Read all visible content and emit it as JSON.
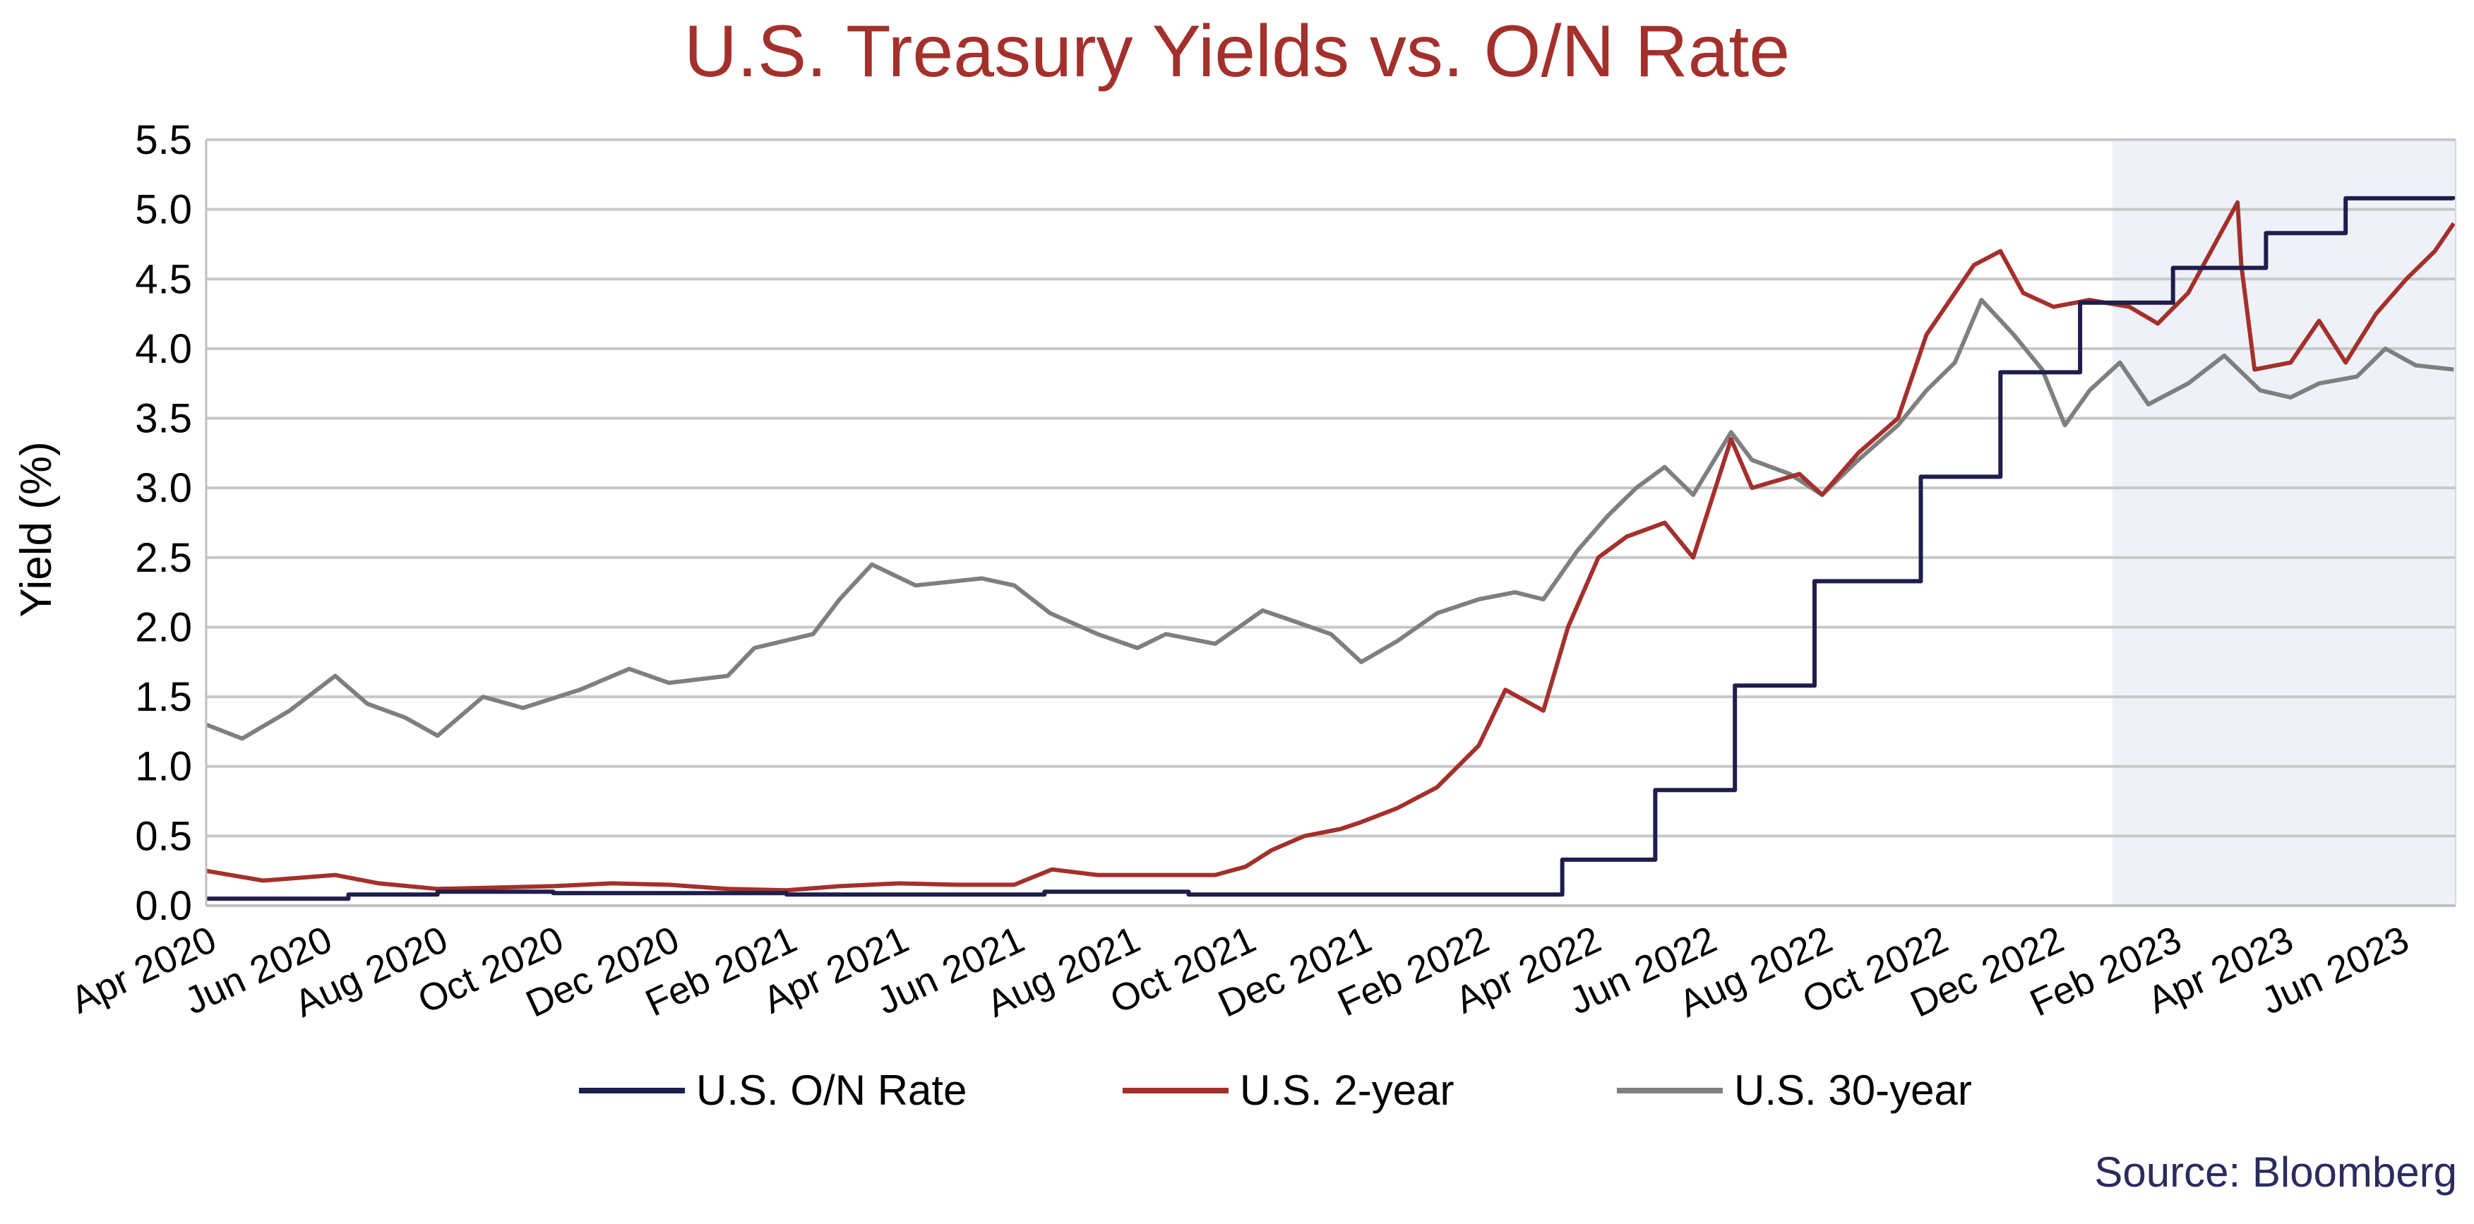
{
  "chart_data": {
    "type": "line",
    "title": "U.S. Treasury Yields vs. O/N Rate",
    "ylabel": "Yield (%)",
    "xlabel": "",
    "ylim": [
      0,
      5.5
    ],
    "yticks": [
      "0.0",
      "0.5",
      "1.0",
      "1.5",
      "2.0",
      "2.5",
      "3.0",
      "3.5",
      "4.0",
      "4.5",
      "5.0",
      "5.5"
    ],
    "xlim": [
      "2020-04-01",
      "2023-07-01"
    ],
    "xticks": [
      {
        "date": "2020-04-01",
        "label": "Apr 2020"
      },
      {
        "date": "2020-06-01",
        "label": "Jun 2020"
      },
      {
        "date": "2020-08-01",
        "label": "Aug 2020"
      },
      {
        "date": "2020-10-01",
        "label": "Oct 2020"
      },
      {
        "date": "2020-12-01",
        "label": "Dec 2020"
      },
      {
        "date": "2021-02-01",
        "label": "Feb 2021"
      },
      {
        "date": "2021-04-01",
        "label": "Apr 2021"
      },
      {
        "date": "2021-06-01",
        "label": "Jun 2021"
      },
      {
        "date": "2021-08-01",
        "label": "Aug 2021"
      },
      {
        "date": "2021-10-01",
        "label": "Oct 2021"
      },
      {
        "date": "2021-12-01",
        "label": "Dec 2021"
      },
      {
        "date": "2022-02-01",
        "label": "Feb 2022"
      },
      {
        "date": "2022-04-01",
        "label": "Apr 2022"
      },
      {
        "date": "2022-06-01",
        "label": "Jun 2022"
      },
      {
        "date": "2022-08-01",
        "label": "Aug 2022"
      },
      {
        "date": "2022-10-01",
        "label": "Oct 2022"
      },
      {
        "date": "2022-12-01",
        "label": "Dec 2022"
      },
      {
        "date": "2023-02-01",
        "label": "Feb 2023"
      },
      {
        "date": "2023-04-01",
        "label": "Apr 2023"
      },
      {
        "date": "2023-06-01",
        "label": "Jun 2023"
      }
    ],
    "grid": "horizontal",
    "legend_position": "bottom",
    "shaded_region": {
      "start": "2023-01-01",
      "end": "2023-07-01",
      "color": "#eef2f8"
    },
    "series": [
      {
        "name": "U.S. O/N Rate",
        "color": "#1f1d4d",
        "step": true,
        "points": [
          [
            "2020-04-01",
            0.05
          ],
          [
            "2020-06-15",
            0.08
          ],
          [
            "2020-08-01",
            0.1
          ],
          [
            "2020-10-01",
            0.09
          ],
          [
            "2021-02-01",
            0.08
          ],
          [
            "2021-06-17",
            0.1
          ],
          [
            "2021-09-01",
            0.08
          ],
          [
            "2022-03-17",
            0.33
          ],
          [
            "2022-05-05",
            0.83
          ],
          [
            "2022-06-16",
            1.58
          ],
          [
            "2022-07-28",
            2.33
          ],
          [
            "2022-09-22",
            3.08
          ],
          [
            "2022-11-03",
            3.83
          ],
          [
            "2022-12-15",
            4.33
          ],
          [
            "2023-02-02",
            4.58
          ],
          [
            "2023-03-23",
            4.83
          ],
          [
            "2023-05-04",
            5.08
          ],
          [
            "2023-06-30",
            5.07
          ]
        ]
      },
      {
        "name": "U.S. 2-year",
        "color": "#a4302c",
        "points": [
          [
            "2020-04-01",
            0.25
          ],
          [
            "2020-05-01",
            0.18
          ],
          [
            "2020-06-08",
            0.22
          ],
          [
            "2020-07-01",
            0.16
          ],
          [
            "2020-08-01",
            0.12
          ],
          [
            "2020-09-01",
            0.13
          ],
          [
            "2020-10-01",
            0.14
          ],
          [
            "2020-11-01",
            0.16
          ],
          [
            "2020-12-01",
            0.15
          ],
          [
            "2021-01-01",
            0.12
          ],
          [
            "2021-02-01",
            0.11
          ],
          [
            "2021-03-01",
            0.14
          ],
          [
            "2021-04-01",
            0.16
          ],
          [
            "2021-05-01",
            0.15
          ],
          [
            "2021-06-01",
            0.15
          ],
          [
            "2021-06-21",
            0.26
          ],
          [
            "2021-07-15",
            0.22
          ],
          [
            "2021-08-15",
            0.22
          ],
          [
            "2021-09-15",
            0.22
          ],
          [
            "2021-10-01",
            0.28
          ],
          [
            "2021-10-15",
            0.4
          ],
          [
            "2021-11-01",
            0.5
          ],
          [
            "2021-11-20",
            0.55
          ],
          [
            "2021-12-01",
            0.6
          ],
          [
            "2021-12-20",
            0.7
          ],
          [
            "2022-01-10",
            0.85
          ],
          [
            "2022-02-01",
            1.15
          ],
          [
            "2022-02-15",
            1.55
          ],
          [
            "2022-03-07",
            1.4
          ],
          [
            "2022-03-20",
            2.0
          ],
          [
            "2022-04-05",
            2.5
          ],
          [
            "2022-04-20",
            2.65
          ],
          [
            "2022-05-10",
            2.75
          ],
          [
            "2022-05-25",
            2.5
          ],
          [
            "2022-06-14",
            3.35
          ],
          [
            "2022-06-25",
            3.0
          ],
          [
            "2022-07-20",
            3.1
          ],
          [
            "2022-08-01",
            2.95
          ],
          [
            "2022-08-20",
            3.25
          ],
          [
            "2022-09-10",
            3.5
          ],
          [
            "2022-09-25",
            4.1
          ],
          [
            "2022-10-10",
            4.4
          ],
          [
            "2022-10-20",
            4.6
          ],
          [
            "2022-11-03",
            4.7
          ],
          [
            "2022-11-15",
            4.4
          ],
          [
            "2022-12-01",
            4.3
          ],
          [
            "2022-12-20",
            4.35
          ],
          [
            "2023-01-10",
            4.3
          ],
          [
            "2023-01-25",
            4.18
          ],
          [
            "2023-02-10",
            4.4
          ],
          [
            "2023-02-28",
            4.85
          ],
          [
            "2023-03-08",
            5.05
          ],
          [
            "2023-03-10",
            4.6
          ],
          [
            "2023-03-17",
            3.85
          ],
          [
            "2023-04-05",
            3.9
          ],
          [
            "2023-04-20",
            4.2
          ],
          [
            "2023-05-04",
            3.9
          ],
          [
            "2023-05-20",
            4.25
          ],
          [
            "2023-06-05",
            4.5
          ],
          [
            "2023-06-20",
            4.7
          ],
          [
            "2023-06-30",
            4.9
          ]
        ]
      },
      {
        "name": "U.S. 30-year",
        "color": "#7f7f7f",
        "points": [
          [
            "2020-04-01",
            1.3
          ],
          [
            "2020-04-20",
            1.2
          ],
          [
            "2020-05-15",
            1.4
          ],
          [
            "2020-06-08",
            1.65
          ],
          [
            "2020-06-25",
            1.45
          ],
          [
            "2020-07-15",
            1.35
          ],
          [
            "2020-08-01",
            1.22
          ],
          [
            "2020-08-25",
            1.5
          ],
          [
            "2020-09-15",
            1.42
          ],
          [
            "2020-10-15",
            1.55
          ],
          [
            "2020-11-10",
            1.7
          ],
          [
            "2020-12-01",
            1.6
          ],
          [
            "2021-01-01",
            1.65
          ],
          [
            "2021-01-15",
            1.85
          ],
          [
            "2021-02-15",
            1.95
          ],
          [
            "2021-03-01",
            2.2
          ],
          [
            "2021-03-18",
            2.45
          ],
          [
            "2021-04-10",
            2.3
          ],
          [
            "2021-05-15",
            2.35
          ],
          [
            "2021-06-01",
            2.3
          ],
          [
            "2021-06-20",
            2.1
          ],
          [
            "2021-07-15",
            1.95
          ],
          [
            "2021-08-05",
            1.85
          ],
          [
            "2021-08-20",
            1.95
          ],
          [
            "2021-09-15",
            1.88
          ],
          [
            "2021-10-10",
            2.12
          ],
          [
            "2021-10-25",
            2.05
          ],
          [
            "2021-11-15",
            1.95
          ],
          [
            "2021-12-01",
            1.75
          ],
          [
            "2021-12-20",
            1.9
          ],
          [
            "2022-01-10",
            2.1
          ],
          [
            "2022-02-01",
            2.2
          ],
          [
            "2022-02-20",
            2.25
          ],
          [
            "2022-03-07",
            2.2
          ],
          [
            "2022-03-25",
            2.55
          ],
          [
            "2022-04-10",
            2.8
          ],
          [
            "2022-04-25",
            3.0
          ],
          [
            "2022-05-10",
            3.15
          ],
          [
            "2022-05-25",
            2.95
          ],
          [
            "2022-06-14",
            3.4
          ],
          [
            "2022-06-25",
            3.2
          ],
          [
            "2022-07-15",
            3.1
          ],
          [
            "2022-08-01",
            2.95
          ],
          [
            "2022-08-20",
            3.2
          ],
          [
            "2022-09-10",
            3.45
          ],
          [
            "2022-09-25",
            3.7
          ],
          [
            "2022-10-10",
            3.9
          ],
          [
            "2022-10-24",
            4.35
          ],
          [
            "2022-11-10",
            4.1
          ],
          [
            "2022-11-25",
            3.85
          ],
          [
            "2022-12-07",
            3.45
          ],
          [
            "2022-12-20",
            3.7
          ],
          [
            "2023-01-05",
            3.9
          ],
          [
            "2023-01-20",
            3.6
          ],
          [
            "2023-02-10",
            3.75
          ],
          [
            "2023-03-01",
            3.95
          ],
          [
            "2023-03-20",
            3.7
          ],
          [
            "2023-04-05",
            3.65
          ],
          [
            "2023-04-20",
            3.75
          ],
          [
            "2023-05-10",
            3.8
          ],
          [
            "2023-05-25",
            4.0
          ],
          [
            "2023-06-10",
            3.88
          ],
          [
            "2023-06-30",
            3.85
          ]
        ]
      }
    ]
  },
  "source": "Source: Bloomberg"
}
